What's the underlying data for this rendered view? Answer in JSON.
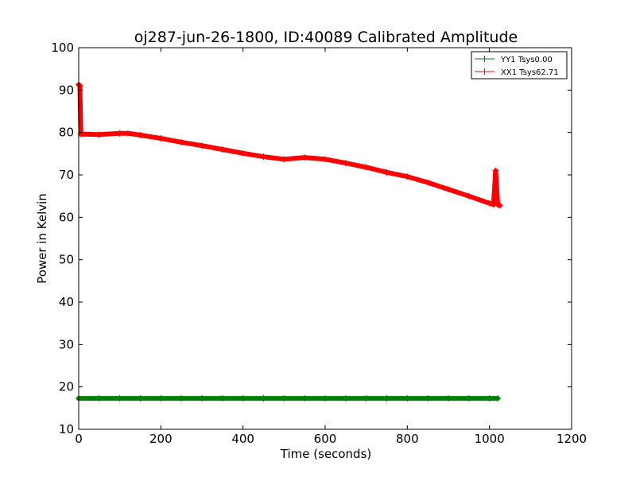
{
  "chart_data": {
    "type": "line",
    "title": "oj287-jun-26-1800, ID:40089 Calibrated Amplitude",
    "xlabel": "Time (seconds)",
    "ylabel": "Power in Kelvin",
    "xlim": [
      0,
      1200
    ],
    "ylim": [
      10,
      100
    ],
    "xticks": [
      0,
      200,
      400,
      600,
      800,
      1000,
      1200
    ],
    "yticks": [
      10,
      20,
      30,
      40,
      50,
      60,
      70,
      80,
      90,
      100
    ],
    "grid": false,
    "legend_position": "top-right",
    "series": [
      {
        "name": "YY1 Tsys0.00",
        "color": "#008000",
        "marker": "+",
        "x": [
          0,
          50,
          100,
          150,
          200,
          250,
          300,
          350,
          400,
          450,
          500,
          550,
          600,
          650,
          700,
          750,
          800,
          850,
          900,
          950,
          1000,
          1020
        ],
        "y": [
          17.3,
          17.3,
          17.3,
          17.3,
          17.3,
          17.3,
          17.3,
          17.3,
          17.3,
          17.3,
          17.3,
          17.3,
          17.3,
          17.3,
          17.3,
          17.3,
          17.3,
          17.3,
          17.3,
          17.3,
          17.3,
          17.3
        ]
      },
      {
        "name": "XX1 Tsys62.71",
        "color": "#ff0000",
        "marker": "+",
        "x": [
          0,
          3,
          5,
          10,
          50,
          100,
          120,
          150,
          200,
          250,
          300,
          350,
          400,
          450,
          500,
          550,
          600,
          650,
          700,
          750,
          800,
          850,
          900,
          950,
          1000,
          1010,
          1015,
          1020,
          1025
        ],
        "y": [
          91.3,
          91.0,
          79.6,
          79.6,
          79.5,
          79.8,
          79.8,
          79.4,
          78.6,
          77.7,
          76.9,
          76.0,
          75.1,
          74.3,
          73.7,
          74.1,
          73.7,
          72.8,
          71.8,
          70.6,
          69.6,
          68.2,
          66.6,
          65.0,
          63.3,
          63.0,
          71.0,
          63.0,
          62.8
        ]
      }
    ]
  }
}
